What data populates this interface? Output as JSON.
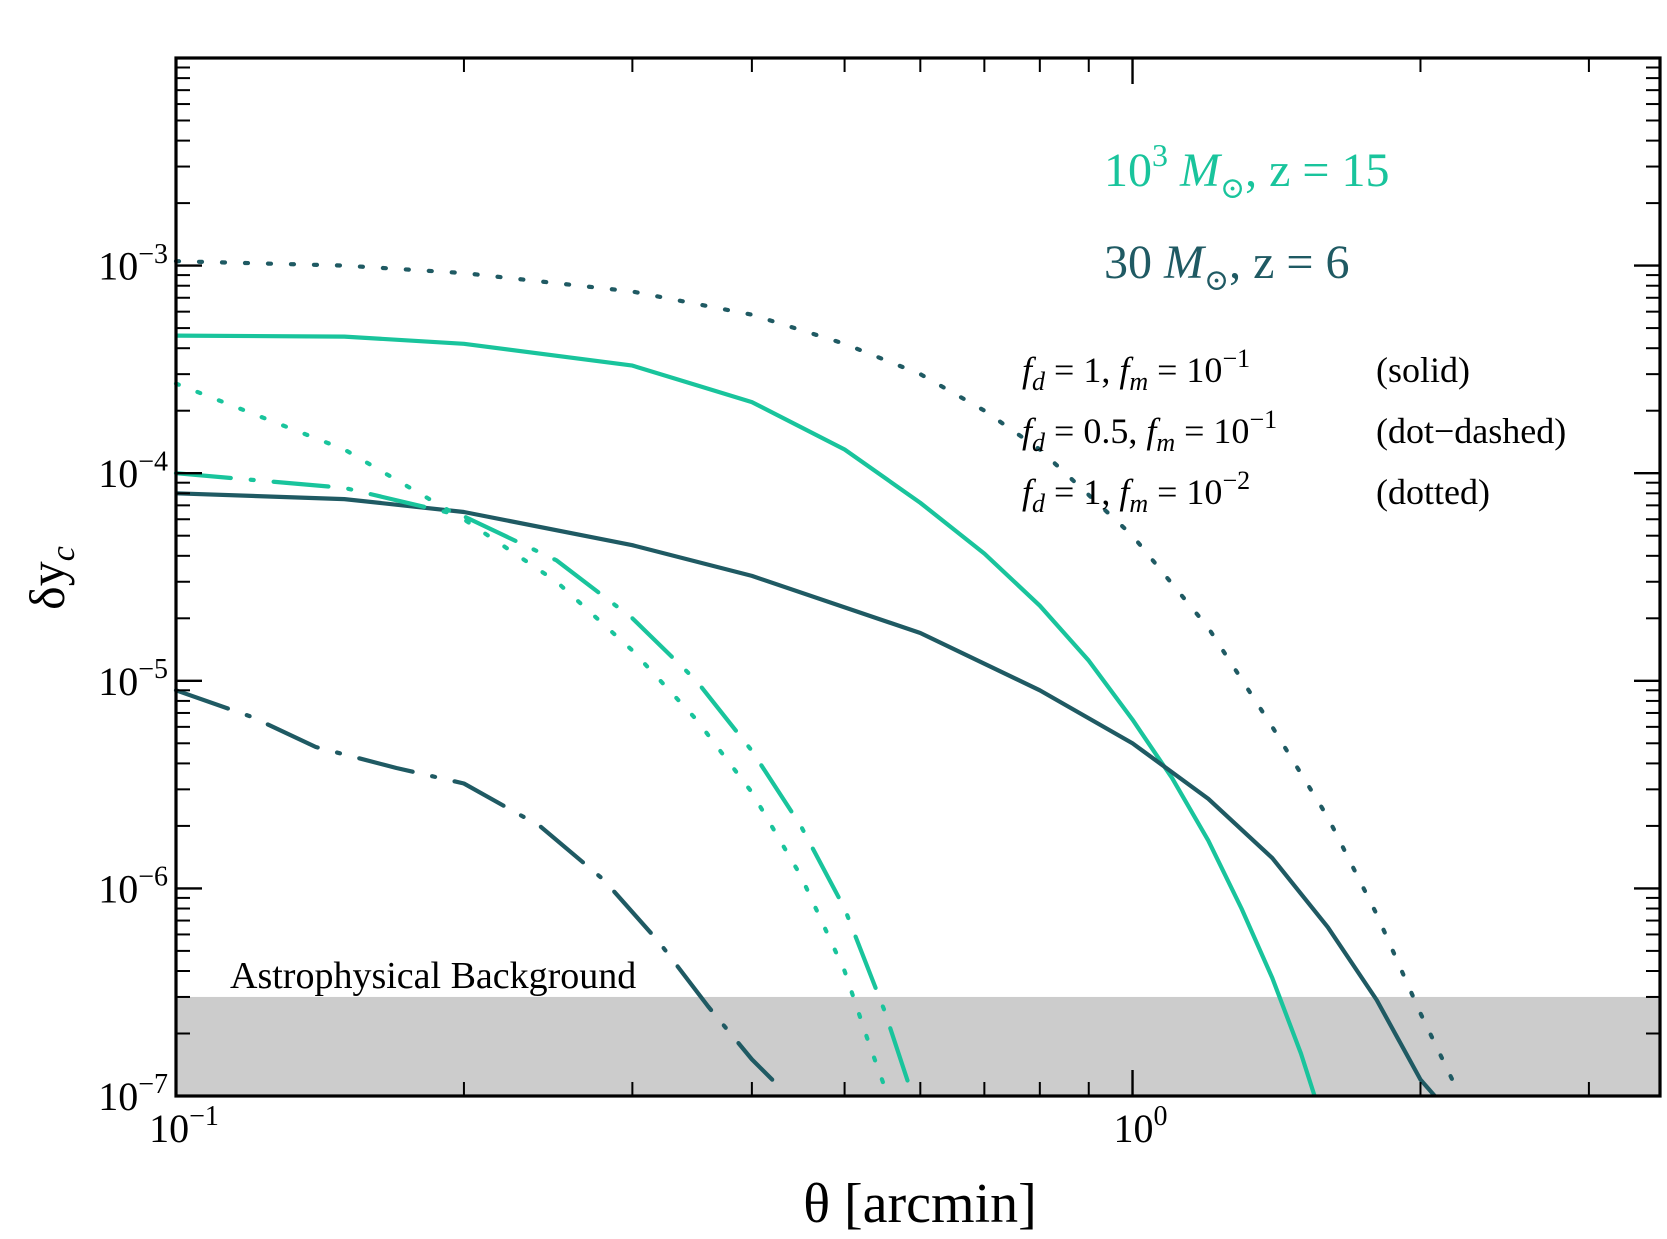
{
  "chart_data": {
    "type": "line",
    "title": "",
    "xlabel": "θ   [arcmin]",
    "ylabel": "δy_c",
    "xscale": "log",
    "yscale": "log",
    "xlim": [
      0.1,
      3.56
    ],
    "ylim": [
      1e-07,
      0.01
    ],
    "x_tick_labels": [
      {
        "value": 0.1,
        "base": "10",
        "exp": "−1"
      },
      {
        "value": 1,
        "base": "10",
        "exp": "0"
      }
    ],
    "y_tick_labels": [
      {
        "value": 1e-07,
        "base": "10",
        "exp": "−7"
      },
      {
        "value": 1e-06,
        "base": "10",
        "exp": "−6"
      },
      {
        "value": 1e-05,
        "base": "10",
        "exp": "−5"
      },
      {
        "value": 0.0001,
        "base": "10",
        "exp": "−4"
      },
      {
        "value": 0.001,
        "base": "10",
        "exp": "−3"
      }
    ],
    "colors": {
      "mass_1000": "#19c49c",
      "mass_30": "#1f5a63",
      "background_band": "#cccccc"
    },
    "background_band": {
      "label": "Astrophysical Background",
      "ymin": 1e-07,
      "ymax": 3e-07
    },
    "legend": {
      "entries": [
        {
          "name": "mass_1000",
          "text": "10",
          "sup": "3",
          "mass_sym": "M",
          "sub_sym": "⊙",
          "tail": ",  z = 15",
          "color": "#19c49c"
        },
        {
          "name": "mass_30",
          "text": "30 ",
          "sup": "",
          "mass_sym": "M",
          "sub_sym": "⊙",
          "tail": ",   z = 6",
          "color": "#1f5a63"
        }
      ],
      "styles": [
        {
          "f_d": "1,",
          "f_m_exp": "−1",
          "style": "(solid)"
        },
        {
          "f_d": "0.5,",
          "f_m_exp": "−1",
          "style": "(dot−dashed)"
        },
        {
          "f_d": "1,",
          "f_m_exp": "−2",
          "style": "(dotted)"
        }
      ]
    },
    "series": [
      {
        "name": "1e3 Msun z=15 solid",
        "color": "#19c49c",
        "style": "solid",
        "x": [
          0.1,
          0.15,
          0.2,
          0.3,
          0.4,
          0.5,
          0.6,
          0.7,
          0.8,
          0.9,
          1.0,
          1.1,
          1.2,
          1.3,
          1.4,
          1.5,
          1.55
        ],
        "y": [
          0.00046,
          0.000455,
          0.00042,
          0.00033,
          0.00022,
          0.00013,
          7.2e-05,
          4.1e-05,
          2.3e-05,
          1.25e-05,
          6.5e-06,
          3.4e-06,
          1.7e-06,
          8e-07,
          3.7e-07,
          1.6e-07,
          1e-07
        ]
      },
      {
        "name": "30 Msun z=6 solid",
        "color": "#1f5a63",
        "style": "solid",
        "x": [
          0.1,
          0.15,
          0.2,
          0.3,
          0.4,
          0.6,
          0.8,
          1.0,
          1.2,
          1.4,
          1.6,
          1.8,
          2.0,
          2.07
        ],
        "y": [
          8e-05,
          7.5e-05,
          6.5e-05,
          4.5e-05,
          3.2e-05,
          1.7e-05,
          9e-06,
          5e-06,
          2.7e-06,
          1.4e-06,
          6.5e-07,
          2.9e-07,
          1.2e-07,
          1e-07
        ]
      },
      {
        "name": "1e3 Msun z=15 dotted",
        "color": "#19c49c",
        "style": "dotted",
        "x": [
          0.1,
          0.15,
          0.2,
          0.25,
          0.3,
          0.35,
          0.4,
          0.45,
          0.5,
          0.53,
          0.555
        ],
        "y": [
          0.00027,
          0.00013,
          6e-05,
          3e-05,
          1.4e-05,
          6.5e-06,
          2.9e-06,
          1.15e-06,
          4e-07,
          1.8e-07,
          1e-07
        ]
      },
      {
        "name": "1e3 Msun z=15 dot-dashed",
        "color": "#19c49c",
        "style": "dotdash",
        "x": [
          0.1,
          0.15,
          0.2,
          0.25,
          0.3,
          0.35,
          0.4,
          0.45,
          0.5,
          0.55,
          0.585
        ],
        "y": [
          0.0001,
          8.5e-05,
          6.2e-05,
          3.8e-05,
          2e-05,
          1e-05,
          4.6e-06,
          2e-06,
          8e-07,
          2.6e-07,
          1.1e-07
        ]
      },
      {
        "name": "30 Msun z=6 dot-dashed",
        "color": "#1f5a63",
        "style": "dotdash",
        "x": [
          0.1,
          0.12,
          0.14,
          0.17,
          0.2,
          0.24,
          0.28,
          0.32,
          0.36,
          0.4,
          0.42
        ],
        "y": [
          9e-06,
          6.7e-06,
          4.8e-06,
          3.8e-06,
          3.2e-06,
          2e-06,
          1.1e-06,
          5.5e-07,
          2.7e-07,
          1.5e-07,
          1.2e-07
        ]
      },
      {
        "name": "30 Msun z=6 dotted",
        "color": "#1f5a63",
        "style": "dotted",
        "x": [
          0.1,
          0.15,
          0.2,
          0.3,
          0.4,
          0.5,
          0.6,
          0.7,
          0.8,
          1.0,
          1.2,
          1.4,
          1.6,
          1.8,
          2.0,
          2.2
        ],
        "y": [
          0.00105,
          0.001,
          0.00092,
          0.00075,
          0.00058,
          0.00042,
          0.0003,
          0.0002,
          0.00013,
          5e-05,
          1.8e-05,
          6e-06,
          2.2e-06,
          7.5e-07,
          2.5e-07,
          1e-07
        ]
      }
    ]
  }
}
